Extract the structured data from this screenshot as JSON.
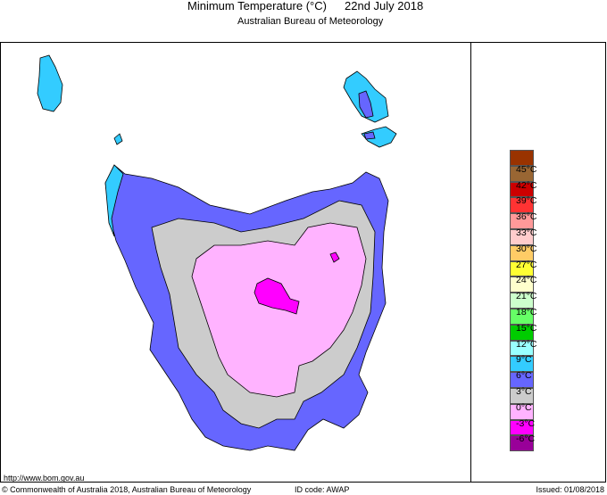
{
  "header": {
    "title": "Minimum Temperature (°C)",
    "date": "22nd July 2018",
    "subtitle": "Australian Bureau of Meteorology"
  },
  "legend": {
    "colors": [
      "#993300",
      "#996633",
      "#cc0000",
      "#ff3333",
      "#ff9999",
      "#ffcccc",
      "#ffcc66",
      "#ffff33",
      "#ffffcc",
      "#ccffcc",
      "#66ff66",
      "#00cc00",
      "#99ffff",
      "#33ccff",
      "#6666ff",
      "#cccccc",
      "#ffb3ff",
      "#ff00ff",
      "#990099"
    ],
    "labels": [
      "45°C",
      "42°C",
      "39°C",
      "36°C",
      "33°C",
      "30°C",
      "27°C",
      "24°C",
      "21°C",
      "18°C",
      "15°C",
      "12°C",
      "9°C",
      "6°C",
      "3°C",
      "0°C",
      "-3°C",
      "-6°C"
    ]
  },
  "footer": {
    "url": "http://www.bom.gov.au",
    "copyright": "© Commonwealth of Australia 2018, Australian Bureau of Meteorology",
    "id_code": "ID code: AWAP",
    "issued": "Issued: 01/08/2018"
  }
}
